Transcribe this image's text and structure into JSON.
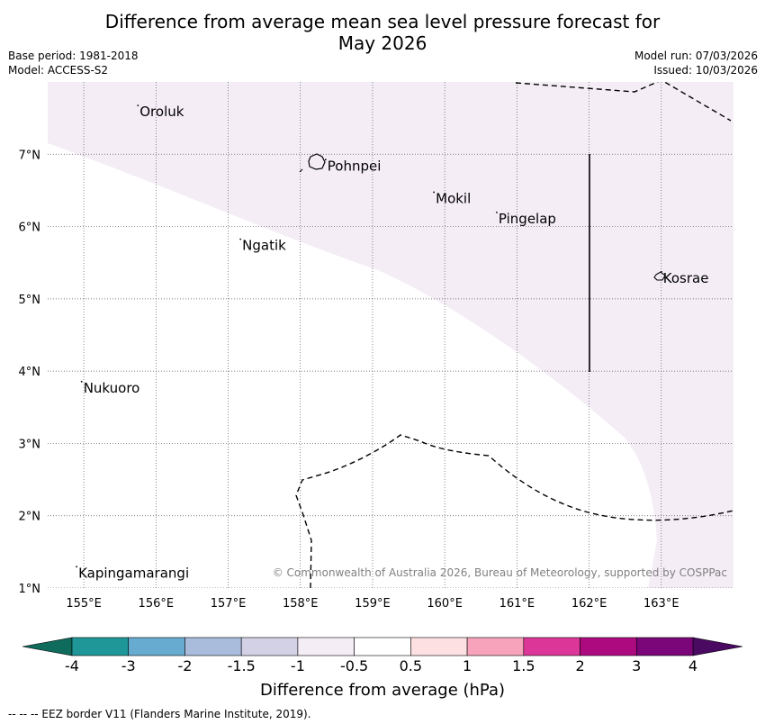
{
  "header": {
    "title_line1": "Difference from average mean sea level pressure forecast for",
    "title_line2": "May 2026",
    "base_period": "Base period: 1981-2018",
    "model": "Model: ACCESS-S2",
    "model_run": "Model run: 07/03/2026",
    "issued": "Issued: 10/03/2026"
  },
  "map": {
    "lon_range": [
      154.5,
      164.0
    ],
    "lat_range": [
      1.0,
      8.0
    ],
    "lon_ticks": [
      {
        "value": 155,
        "label": "155°E"
      },
      {
        "value": 156,
        "label": "156°E"
      },
      {
        "value": 157,
        "label": "157°E"
      },
      {
        "value": 158,
        "label": "158°E"
      },
      {
        "value": 159,
        "label": "159°E"
      },
      {
        "value": 160,
        "label": "160°E"
      },
      {
        "value": 161,
        "label": "161°E"
      },
      {
        "value": 162,
        "label": "162°E"
      },
      {
        "value": 163,
        "label": "163°E"
      }
    ],
    "lat_ticks": [
      {
        "value": 1,
        "label": "1°N"
      },
      {
        "value": 2,
        "label": "2°N"
      },
      {
        "value": 3,
        "label": "3°N"
      },
      {
        "value": 4,
        "label": "4°N"
      },
      {
        "value": 5,
        "label": "5°N"
      },
      {
        "value": 6,
        "label": "6°N"
      },
      {
        "value": 7,
        "label": "7°N"
      }
    ],
    "shaded_region_color": "#f4edf6",
    "shaded_region_category": "-1 to -0.5",
    "places": [
      {
        "name": "Oroluk",
        "lon": 155.75,
        "lat": 7.6
      },
      {
        "name": "Pohnpei",
        "lon": 158.35,
        "lat": 6.85
      },
      {
        "name": "Mokil",
        "lon": 159.85,
        "lat": 6.4
      },
      {
        "name": "Pingelap",
        "lon": 160.72,
        "lat": 6.12
      },
      {
        "name": "Ngatik",
        "lon": 157.17,
        "lat": 5.75
      },
      {
        "name": "Kosrae",
        "lon": 163.0,
        "lat": 5.3
      },
      {
        "name": "Nukuoro",
        "lon": 154.97,
        "lat": 3.78
      },
      {
        "name": "Kapingamarangi",
        "lon": 154.9,
        "lat": 1.22
      }
    ],
    "copyright": "© Commonwealth of Australia 2026, Bureau of Meteorology, supported by COSPPac"
  },
  "colorbar": {
    "title": "Difference from average (hPa)",
    "under_color": "#0f6b5c",
    "over_color": "#4a0a62",
    "boundaries": [
      "-4",
      "-3",
      "-2",
      "-1.5",
      "-1",
      "-0.5",
      "0.5",
      "1",
      "1.5",
      "2",
      "3",
      "4"
    ],
    "colors": [
      "#1f9698",
      "#67acd0",
      "#a9bcdc",
      "#d3d1e6",
      "#f4edf6",
      "#ffffff",
      "#fde0e1",
      "#f8a3bc",
      "#dc3798",
      "#ad0a80",
      "#7a0679"
    ]
  },
  "footnote": "--  --  -- EEZ border V11 (Flanders Marine Institute, 2019)."
}
